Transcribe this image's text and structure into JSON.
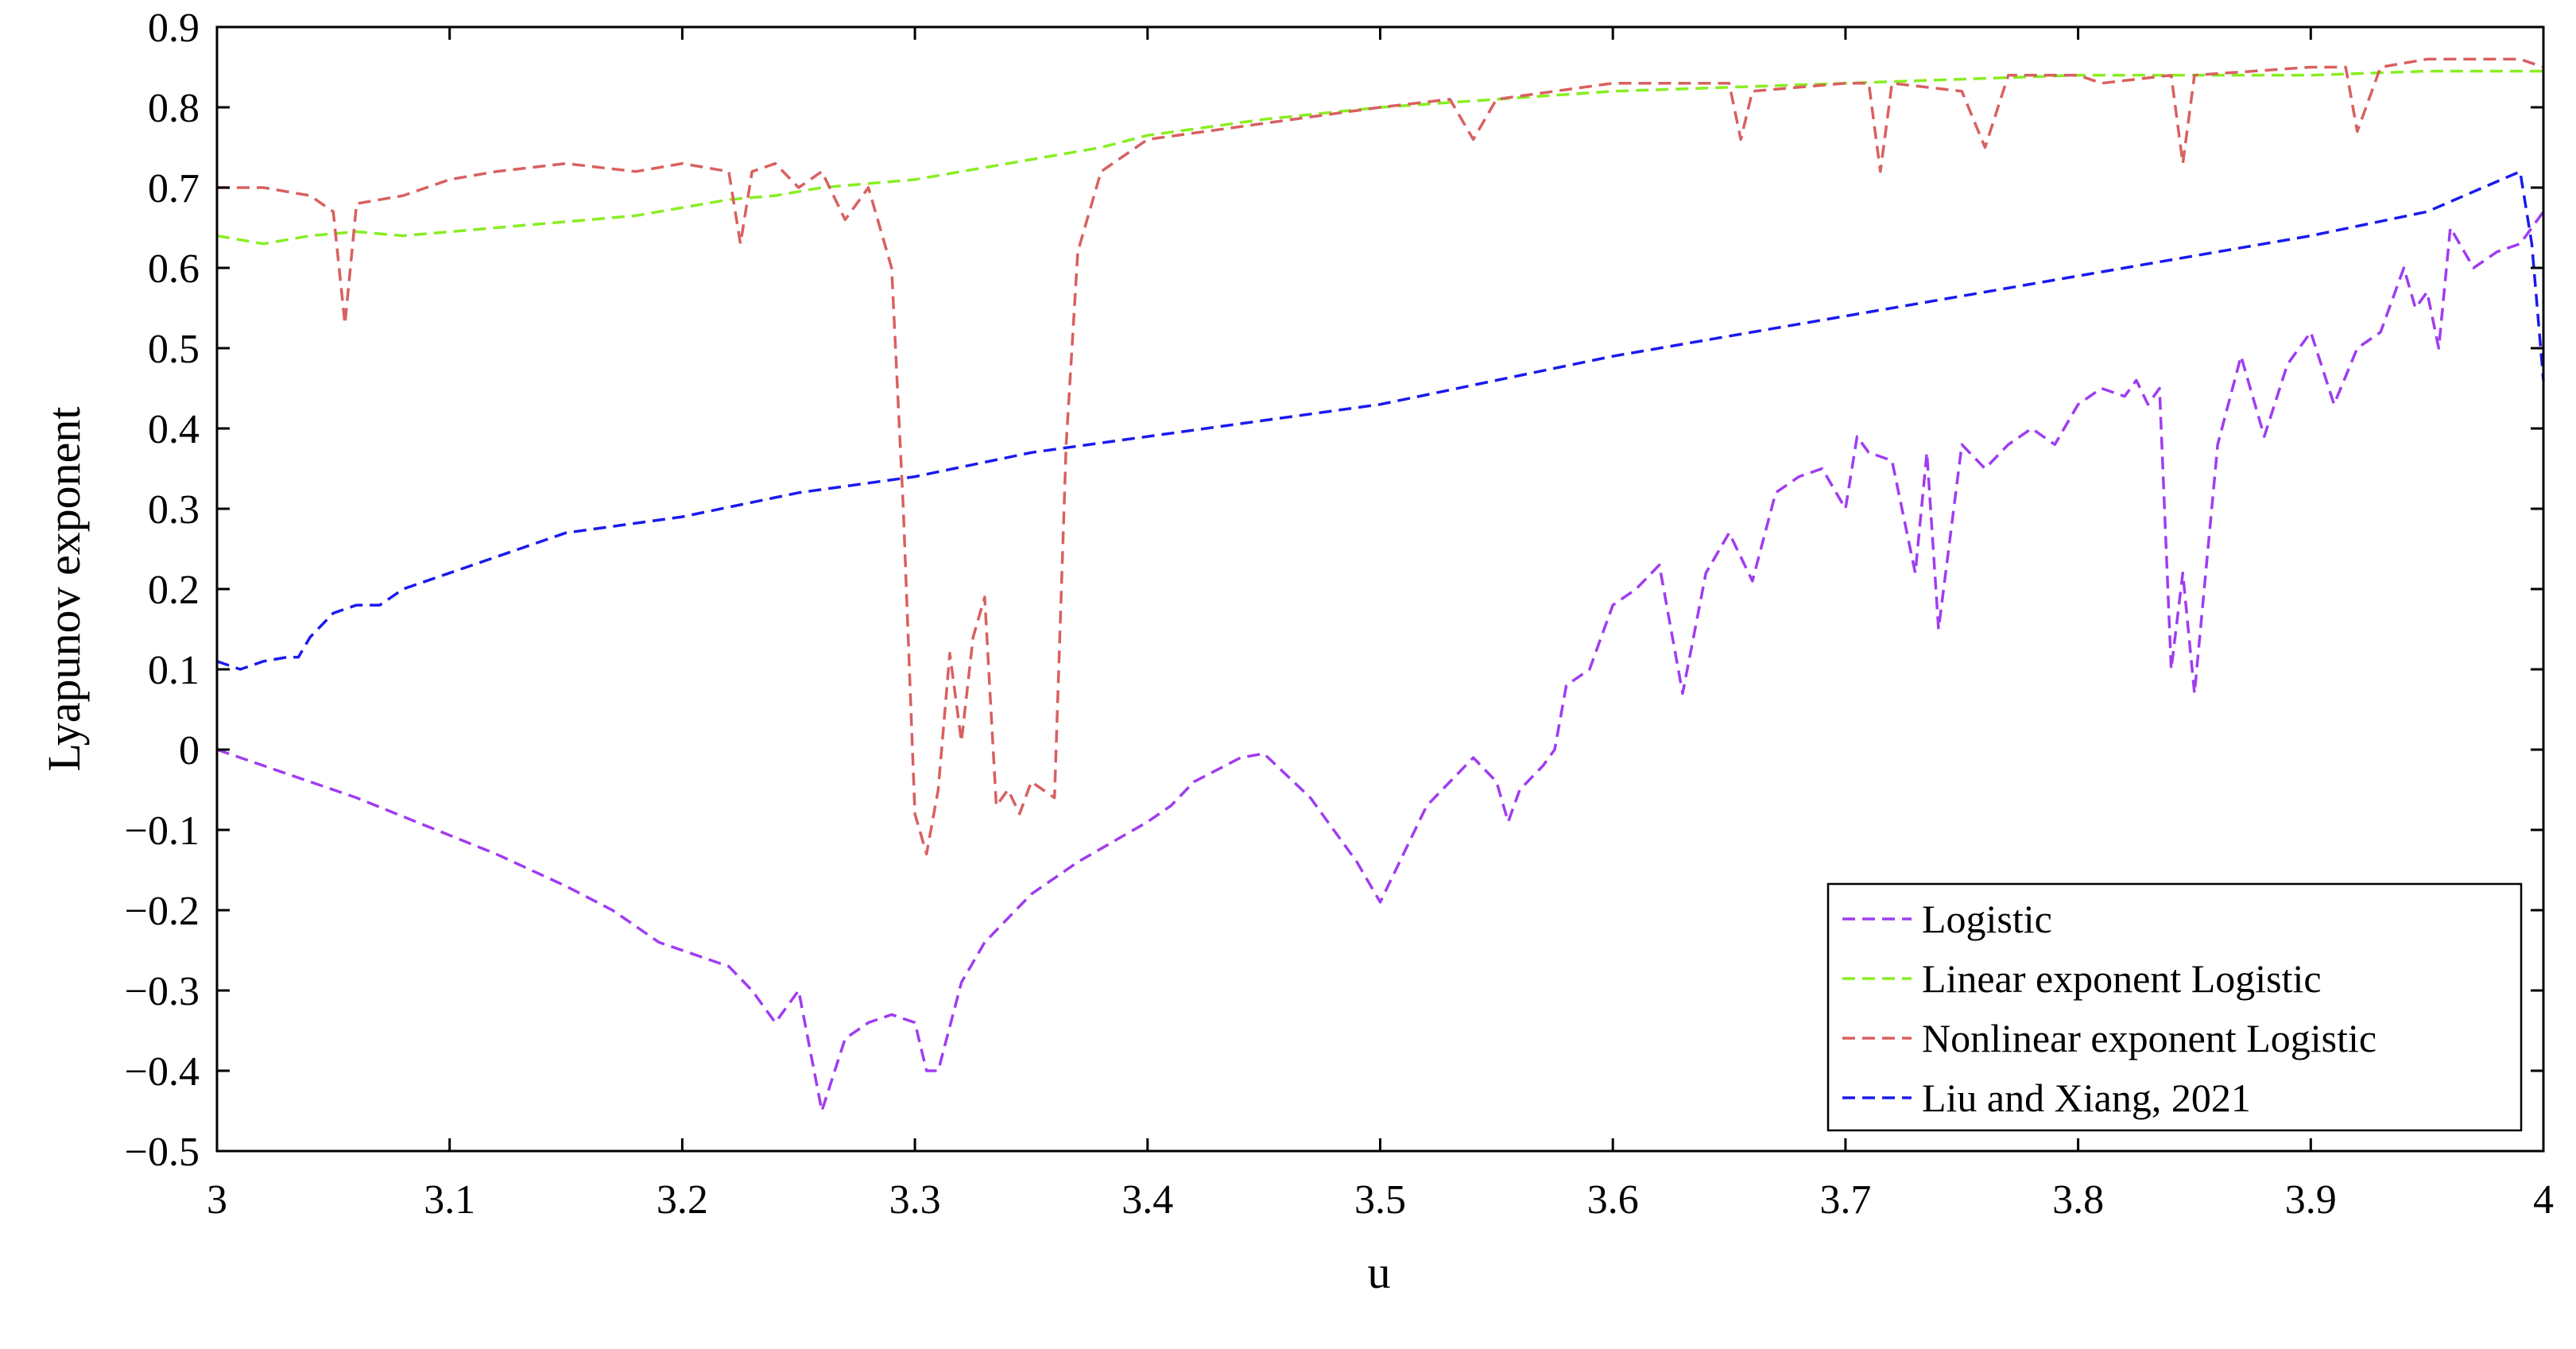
{
  "chart_data": {
    "type": "line",
    "title": "",
    "xlabel": "u",
    "ylabel": "Lyapunov exponent",
    "xlim": [
      3,
      4
    ],
    "ylim": [
      -0.5,
      0.9
    ],
    "xticks": [
      "3",
      "3.1",
      "3.2",
      "3.3",
      "3.4",
      "3.5",
      "3.6",
      "3.7",
      "3.8",
      "3.9",
      "4"
    ],
    "yticks": [
      "−0.5",
      "−0.4",
      "−0.3",
      "−0.2",
      "−0.1",
      "0",
      "0.1",
      "0.2",
      "0.3",
      "0.4",
      "0.5",
      "0.6",
      "0.7",
      "0.8",
      "0.9"
    ],
    "grid": false,
    "legend_position": "bottom-right",
    "series": [
      {
        "name": "Logistic",
        "color": "#a03cf0",
        "x": [
          3.0,
          3.03,
          3.06,
          3.09,
          3.12,
          3.15,
          3.17,
          3.19,
          3.21,
          3.22,
          3.23,
          3.24,
          3.25,
          3.26,
          3.27,
          3.28,
          3.29,
          3.3,
          3.305,
          3.31,
          3.32,
          3.33,
          3.35,
          3.37,
          3.4,
          3.41,
          3.42,
          3.44,
          3.45,
          3.47,
          3.49,
          3.5,
          3.52,
          3.54,
          3.55,
          3.555,
          3.56,
          3.57,
          3.575,
          3.58,
          3.59,
          3.6,
          3.61,
          3.62,
          3.63,
          3.64,
          3.65,
          3.66,
          3.67,
          3.68,
          3.69,
          3.7,
          3.705,
          3.71,
          3.72,
          3.73,
          3.735,
          3.74,
          3.75,
          3.76,
          3.77,
          3.78,
          3.79,
          3.8,
          3.81,
          3.82,
          3.825,
          3.83,
          3.835,
          3.84,
          3.845,
          3.85,
          3.86,
          3.87,
          3.88,
          3.89,
          3.9,
          3.91,
          3.92,
          3.93,
          3.94,
          3.945,
          3.95,
          3.955,
          3.96,
          3.97,
          3.98,
          3.99,
          4.0
        ],
        "values": [
          0.0,
          -0.03,
          -0.06,
          -0.095,
          -0.13,
          -0.17,
          -0.2,
          -0.24,
          -0.26,
          -0.27,
          -0.3,
          -0.34,
          -0.3,
          -0.45,
          -0.36,
          -0.34,
          -0.33,
          -0.34,
          -0.4,
          -0.4,
          -0.29,
          -0.24,
          -0.18,
          -0.14,
          -0.09,
          -0.07,
          -0.04,
          -0.01,
          -0.005,
          -0.06,
          -0.14,
          -0.19,
          -0.07,
          -0.01,
          -0.04,
          -0.09,
          -0.05,
          -0.02,
          0.0,
          0.08,
          0.1,
          0.18,
          0.2,
          0.23,
          0.07,
          0.22,
          0.27,
          0.21,
          0.32,
          0.34,
          0.35,
          0.3,
          0.39,
          0.37,
          0.36,
          0.22,
          0.37,
          0.15,
          0.38,
          0.35,
          0.38,
          0.4,
          0.38,
          0.43,
          0.45,
          0.44,
          0.46,
          0.43,
          0.45,
          0.1,
          0.22,
          0.07,
          0.38,
          0.49,
          0.39,
          0.48,
          0.52,
          0.43,
          0.5,
          0.52,
          0.6,
          0.55,
          0.57,
          0.5,
          0.65,
          0.6,
          0.62,
          0.63,
          0.67
        ]
      },
      {
        "name": "Linear exponent Logistic",
        "color": "#88ee22",
        "x": [
          3.0,
          3.02,
          3.04,
          3.06,
          3.08,
          3.1,
          3.12,
          3.14,
          3.16,
          3.18,
          3.2,
          3.22,
          3.24,
          3.26,
          3.28,
          3.3,
          3.32,
          3.34,
          3.36,
          3.38,
          3.4,
          3.45,
          3.5,
          3.55,
          3.6,
          3.65,
          3.7,
          3.75,
          3.8,
          3.85,
          3.9,
          3.95,
          4.0
        ],
        "values": [
          0.64,
          0.63,
          0.64,
          0.645,
          0.64,
          0.645,
          0.65,
          0.655,
          0.66,
          0.665,
          0.675,
          0.685,
          0.69,
          0.7,
          0.705,
          0.71,
          0.72,
          0.73,
          0.74,
          0.75,
          0.765,
          0.785,
          0.8,
          0.81,
          0.82,
          0.825,
          0.83,
          0.835,
          0.84,
          0.84,
          0.84,
          0.845,
          0.845
        ]
      },
      {
        "name": "Nonlinear exponent Logistic",
        "color": "#d96060",
        "x": [
          3.0,
          3.02,
          3.04,
          3.05,
          3.055,
          3.06,
          3.08,
          3.1,
          3.12,
          3.15,
          3.18,
          3.2,
          3.22,
          3.225,
          3.23,
          3.24,
          3.25,
          3.26,
          3.27,
          3.28,
          3.29,
          3.295,
          3.3,
          3.305,
          3.31,
          3.315,
          3.32,
          3.325,
          3.33,
          3.335,
          3.34,
          3.345,
          3.35,
          3.355,
          3.36,
          3.365,
          3.37,
          3.38,
          3.4,
          3.45,
          3.5,
          3.53,
          3.54,
          3.55,
          3.6,
          3.65,
          3.655,
          3.66,
          3.7,
          3.71,
          3.715,
          3.72,
          3.75,
          3.76,
          3.77,
          3.8,
          3.81,
          3.84,
          3.845,
          3.85,
          3.9,
          3.915,
          3.92,
          3.93,
          3.95,
          3.99,
          4.0
        ],
        "values": [
          0.7,
          0.7,
          0.69,
          0.67,
          0.53,
          0.68,
          0.69,
          0.71,
          0.72,
          0.73,
          0.72,
          0.73,
          0.72,
          0.63,
          0.72,
          0.73,
          0.7,
          0.72,
          0.66,
          0.7,
          0.6,
          0.3,
          -0.08,
          -0.13,
          -0.05,
          0.12,
          0.01,
          0.14,
          0.19,
          -0.07,
          -0.05,
          -0.08,
          -0.04,
          -0.05,
          -0.06,
          0.38,
          0.62,
          0.72,
          0.76,
          0.78,
          0.8,
          0.81,
          0.76,
          0.81,
          0.83,
          0.83,
          0.76,
          0.82,
          0.83,
          0.83,
          0.72,
          0.83,
          0.82,
          0.75,
          0.84,
          0.84,
          0.83,
          0.84,
          0.73,
          0.84,
          0.85,
          0.85,
          0.77,
          0.85,
          0.86,
          0.86,
          0.85
        ]
      },
      {
        "name": "Liu and Xiang, 2021",
        "color": "#1a1aee",
        "x": [
          3.0,
          3.01,
          3.02,
          3.03,
          3.035,
          3.04,
          3.05,
          3.06,
          3.07,
          3.08,
          3.1,
          3.15,
          3.2,
          3.25,
          3.3,
          3.35,
          3.4,
          3.45,
          3.5,
          3.55,
          3.6,
          3.65,
          3.7,
          3.75,
          3.8,
          3.85,
          3.9,
          3.95,
          3.99,
          3.995,
          4.0
        ],
        "values": [
          0.11,
          0.1,
          0.11,
          0.115,
          0.115,
          0.14,
          0.17,
          0.18,
          0.18,
          0.2,
          0.22,
          0.27,
          0.29,
          0.32,
          0.34,
          0.37,
          0.39,
          0.41,
          0.43,
          0.46,
          0.49,
          0.515,
          0.54,
          0.565,
          0.59,
          0.615,
          0.64,
          0.67,
          0.72,
          0.63,
          0.46
        ]
      }
    ]
  }
}
